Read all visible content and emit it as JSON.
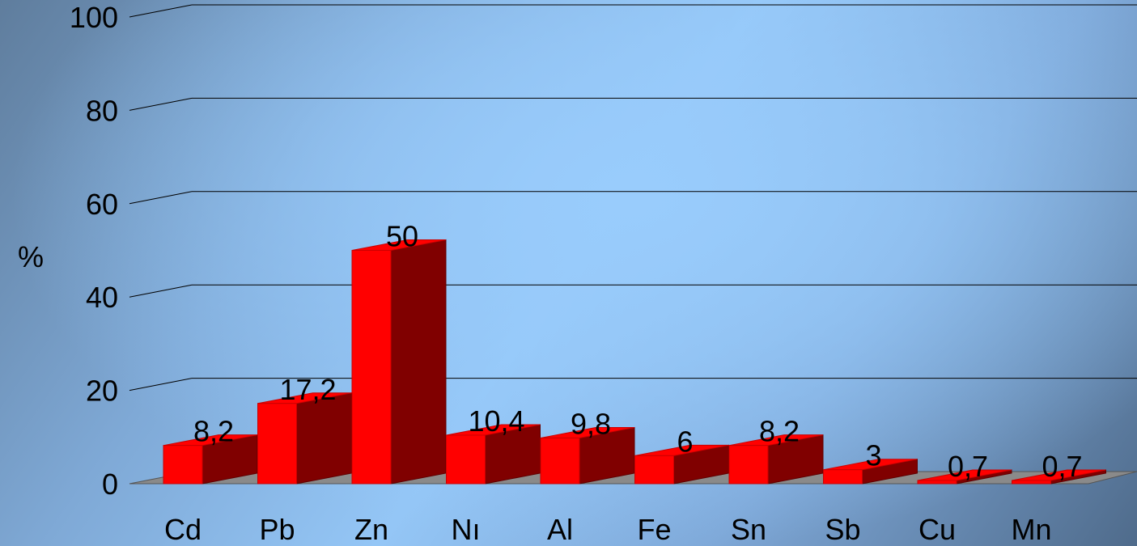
{
  "chart_data": {
    "type": "bar",
    "title": "",
    "xlabel": "",
    "ylabel": "%",
    "ylim": [
      0,
      100
    ],
    "yticks": [
      0,
      20,
      40,
      60,
      80,
      100
    ],
    "grid": true,
    "categories": [
      "Cd",
      "Pb",
      "Zn",
      "Nı",
      "Al",
      "Fe",
      "Sn",
      "Sb",
      "Cu",
      "Mn"
    ],
    "values": [
      8.2,
      17.2,
      50,
      10.4,
      9.8,
      6,
      8.2,
      3,
      0.7,
      0.7
    ],
    "data_labels": [
      "8,2",
      "17,2",
      "50",
      "10,4",
      "9,8",
      "6",
      "8,2",
      "3",
      "0,7",
      "0,7"
    ],
    "colors": {
      "bar_front": "#ff0000",
      "bar_side": "#800000",
      "floor": "#8a8a8a",
      "grid": "#000000"
    }
  }
}
